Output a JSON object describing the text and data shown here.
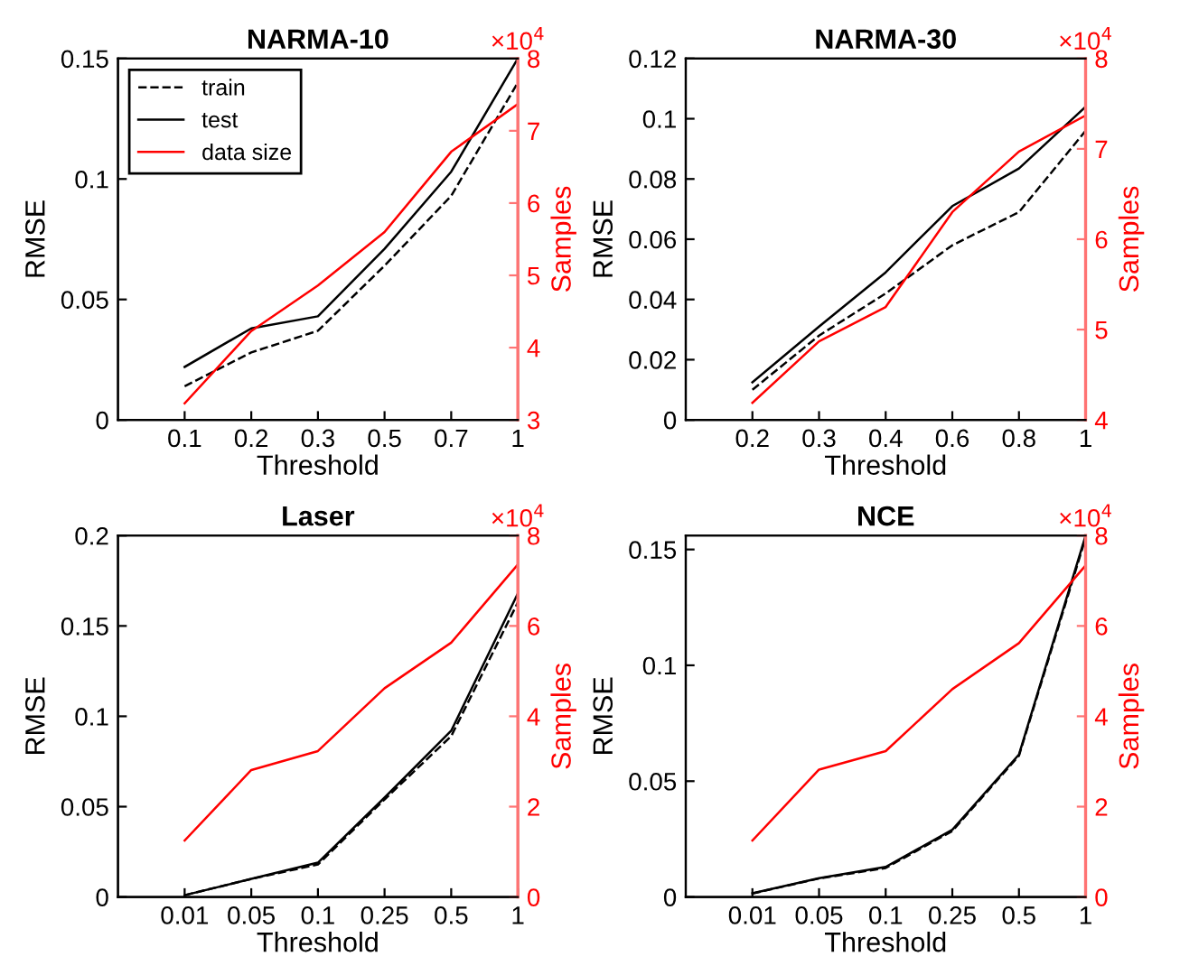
{
  "chart_data": [
    {
      "type": "line",
      "title": "NARMA-10",
      "xlabel": "Threshold",
      "ylabel": "RMSE",
      "y2label": "Samples",
      "categories": [
        "0.1",
        "0.2",
        "0.3",
        "0.5",
        "0.7",
        "1"
      ],
      "ylim": [
        0,
        0.15
      ],
      "yticks": [
        0,
        0.05,
        0.1,
        0.15
      ],
      "y2lim": [
        3,
        8
      ],
      "y2ticks": [
        3,
        4,
        5,
        6,
        7,
        8
      ],
      "annotations": [
        "×10$^{4}$"
      ],
      "legend": "top left",
      "grid": false,
      "series": [
        {
          "name": "train",
          "color": "#000000",
          "line_style": "dashed",
          "values": [
            0.014,
            0.028,
            0.037,
            0.064,
            0.093,
            0.14
          ]
        },
        {
          "name": "test",
          "color": "#000000",
          "line_style": "solid",
          "values": [
            0.022,
            0.038,
            0.043,
            0.071,
            0.103,
            0.15
          ]
        },
        {
          "name": "data size",
          "color": "#ff0000",
          "line_style": "solid",
          "axis": "y2",
          "values": [
            3.23,
            4.23,
            4.86,
            5.6,
            6.71,
            7.37
          ]
        }
      ]
    },
    {
      "type": "line",
      "title": "NARMA-30",
      "xlabel": "Threshold",
      "ylabel": "RMSE",
      "y2label": "Samples",
      "categories": [
        "0.2",
        "0.3",
        "0.4",
        "0.6",
        "0.8",
        "1"
      ],
      "ylim": [
        0,
        0.12
      ],
      "yticks": [
        0,
        0.02,
        0.04,
        0.06,
        0.08,
        0.1,
        0.12
      ],
      "y2lim": [
        4,
        8
      ],
      "y2ticks": [
        4,
        5,
        6,
        7,
        8
      ],
      "annotations": [
        "×10$^{4}$"
      ],
      "grid": false,
      "series": [
        {
          "color": "#000000",
          "line_style": "dashed",
          "values": [
            0.01,
            0.028,
            0.042,
            0.058,
            0.069,
            0.096
          ]
        },
        {
          "color": "#000000",
          "line_style": "solid",
          "values": [
            0.0125,
            0.031,
            0.049,
            0.071,
            0.0835,
            0.104
          ]
        },
        {
          "color": "#ff0000",
          "line_style": "solid",
          "axis": "y2",
          "values": [
            4.19,
            4.87,
            5.25,
            6.3,
            6.97,
            7.37
          ]
        }
      ]
    },
    {
      "type": "line",
      "title": "Laser",
      "xlabel": "Threshold",
      "ylabel": "RMSE",
      "y2label": "Samples",
      "categories": [
        "0.01",
        "0.05",
        "0.1",
        "0.25",
        "0.5",
        "1"
      ],
      "ylim": [
        0,
        0.2
      ],
      "yticks": [
        0,
        0.05,
        0.1,
        0.15,
        0.2
      ],
      "y2lim": [
        0,
        8
      ],
      "y2ticks": [
        0,
        2,
        4,
        6,
        8
      ],
      "annotations": [
        "×10$^{4}$"
      ],
      "grid": false,
      "series": [
        {
          "color": "#000000",
          "line_style": "dashed",
          "values": [
            0.001,
            0.01,
            0.018,
            0.054,
            0.089,
            0.163
          ]
        },
        {
          "color": "#000000",
          "line_style": "solid",
          "values": [
            0.001,
            0.01,
            0.019,
            0.055,
            0.092,
            0.168
          ]
        },
        {
          "color": "#ff0000",
          "line_style": "solid",
          "axis": "y2",
          "values": [
            1.25,
            2.81,
            3.23,
            4.62,
            5.63,
            7.36
          ]
        }
      ]
    },
    {
      "type": "line",
      "title": "NCE",
      "xlabel": "Threshold",
      "ylabel": "RMSE",
      "y2label": "Samples",
      "categories": [
        "0.01",
        "0.05",
        "0.1",
        "0.25",
        "0.5",
        "1"
      ],
      "ylim": [
        0,
        0.156
      ],
      "yticks": [
        0,
        0.05,
        0.1,
        0.15
      ],
      "y2lim": [
        0,
        8
      ],
      "y2ticks": [
        0,
        2,
        4,
        6,
        8
      ],
      "annotations": [
        "×10$^{4}$"
      ],
      "grid": false,
      "series": [
        {
          "color": "#000000",
          "line_style": "dashed",
          "values": [
            0.0015,
            0.008,
            0.0125,
            0.0285,
            0.061,
            0.155
          ]
        },
        {
          "color": "#000000",
          "line_style": "solid",
          "values": [
            0.0016,
            0.0081,
            0.013,
            0.029,
            0.0615,
            0.156
          ]
        },
        {
          "color": "#ff0000",
          "line_style": "solid",
          "axis": "y2",
          "values": [
            1.25,
            2.82,
            3.23,
            4.6,
            5.62,
            7.34
          ]
        }
      ]
    }
  ]
}
